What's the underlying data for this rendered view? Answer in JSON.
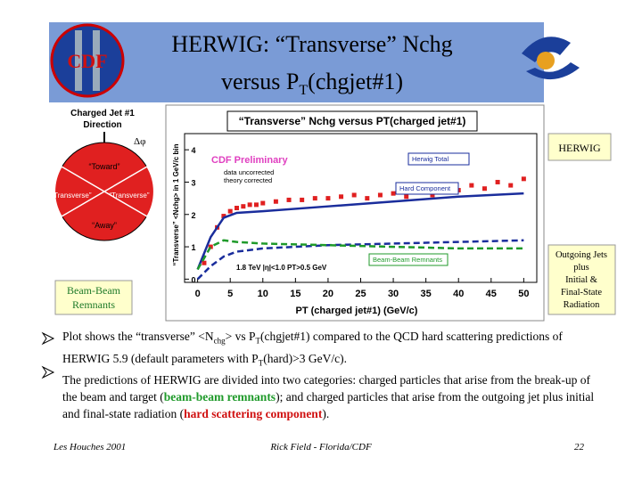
{
  "header": {
    "title_line1": "HERWIG: “Transverse” Nchg",
    "title_line2_a": "versus P",
    "title_line2_sub": "T",
    "title_line2_b": "(chgjet#1)",
    "logo_left": "CDF"
  },
  "diagram": {
    "title_line1": "Charged Jet #1",
    "title_line2": "Direction",
    "delta": "Δφ",
    "toward": "“Toward”",
    "transverse_left": "“Transverse”",
    "transverse_right": "“Transverse”",
    "away": "“Away”"
  },
  "callouts": {
    "beam_beam": [
      "Beam-Beam",
      "Remnants"
    ],
    "herwig": "HERWIG",
    "outgoing": [
      "Outgoing Jets",
      "plus",
      "Initial &",
      "Final-State",
      "Radiation"
    ]
  },
  "chart_data": {
    "type": "line",
    "title": "“Transverse” Nchg versus PT(charged jet#1)",
    "x_label": "PT (charged jet#1)  (GeV/c)",
    "y_label": "“Transverse” <Nchg> in 1 GeV/c bin",
    "annotations": {
      "preliminary": "CDF Preliminary",
      "theory": "theory corrected",
      "cuts": "1.8 TeV |η|<1.0 PT>0.5 GeV"
    },
    "xlim": [
      -2,
      52
    ],
    "ylim": [
      -0.1,
      4.5
    ],
    "xticks": [
      0,
      5,
      10,
      15,
      20,
      25,
      30,
      35,
      40,
      45,
      50
    ],
    "yticks": [
      0,
      1,
      2,
      3,
      4
    ],
    "series": [
      {
        "name": "data uncorrected",
        "color": "#e02020",
        "style": "points",
        "x": [
          1,
          2,
          3,
          4,
          5,
          6,
          7,
          8,
          9,
          10,
          12,
          14,
          16,
          18,
          20,
          22,
          24,
          26,
          28,
          30,
          32,
          34,
          36,
          38,
          40,
          42,
          44,
          46,
          48,
          50
        ],
        "values": [
          0.5,
          1.0,
          1.6,
          1.95,
          2.1,
          2.2,
          2.25,
          2.3,
          2.3,
          2.35,
          2.4,
          2.45,
          2.45,
          2.5,
          2.5,
          2.55,
          2.6,
          2.5,
          2.6,
          2.65,
          2.55,
          2.7,
          2.6,
          2.8,
          2.75,
          2.9,
          2.8,
          3.0,
          2.9,
          3.1
        ]
      },
      {
        "name": "Herwig Total",
        "color": "#1a2d9c",
        "style": "solid",
        "x": [
          0,
          2,
          4,
          6,
          10,
          20,
          30,
          40,
          50
        ],
        "values": [
          0.3,
          1.3,
          1.9,
          2.05,
          2.1,
          2.25,
          2.4,
          2.55,
          2.65
        ]
      },
      {
        "name": "Hard Component",
        "color": "#1a2d9c",
        "style": "dashed",
        "x": [
          0,
          2,
          4,
          6,
          10,
          20,
          30,
          40,
          50
        ],
        "values": [
          0.0,
          0.4,
          0.7,
          0.85,
          0.95,
          1.05,
          1.1,
          1.15,
          1.2
        ]
      },
      {
        "name": "Beam-Beam Remnants",
        "color": "#1f9a2a",
        "style": "dashed",
        "x": [
          0,
          2,
          4,
          6,
          10,
          20,
          30,
          40,
          50
        ],
        "values": [
          0.3,
          1.0,
          1.2,
          1.15,
          1.1,
          1.05,
          1.0,
          0.95,
          0.95
        ]
      }
    ]
  },
  "bullets": [
    [
      "Plot shows the “transverse” <N",
      "chg",
      "> vs P",
      "T",
      "(chgjet#1) compared to the QCD hard scattering predictions of HERWIG 5.9 (default parameters with P",
      "T",
      "(hard)>3 GeV/c)."
    ],
    [
      "The predictions of HERWIG are divided into two categories: charged particles that arise from the break-up of the beam and target (",
      "beam-beam remnants",
      "); and charged particles that arise from the outgoing jet plus initial and final-state radiation (",
      "hard scattering component",
      ")."
    ]
  ],
  "footer": {
    "left": "Les Houches 2001",
    "center": "Rick Field - Florida/CDF",
    "page": "22"
  }
}
